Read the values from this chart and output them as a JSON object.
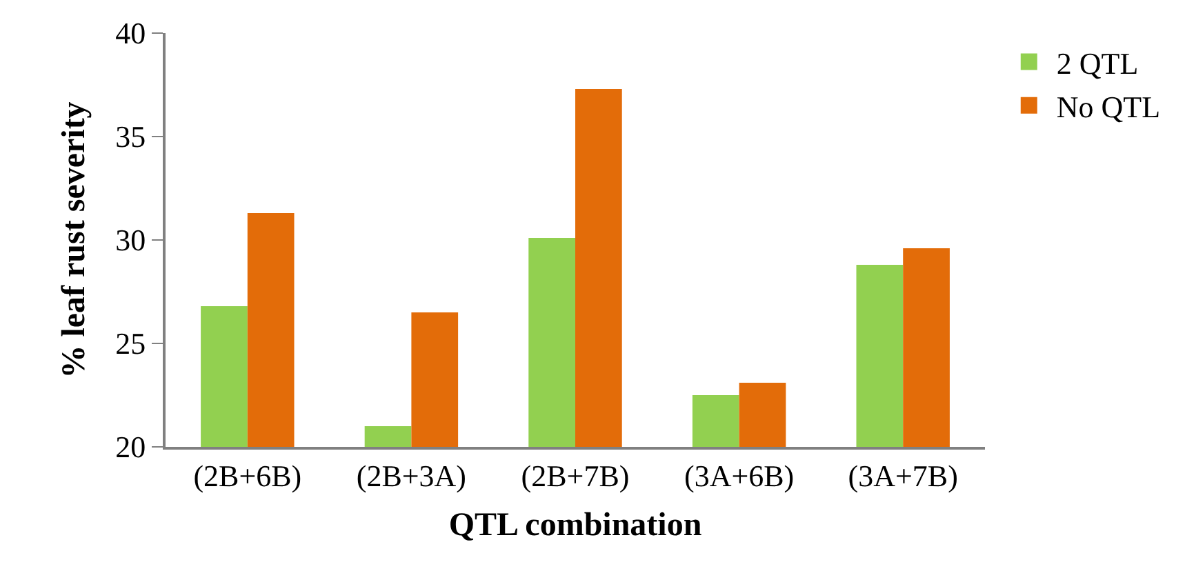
{
  "chart_data": {
    "type": "bar",
    "xlabel": "QTL combination",
    "ylabel": "% leaf rust severity",
    "categories": [
      "(2B+6B)",
      "(2B+3A)",
      "(2B+7B)",
      "(3A+6B)",
      "(3A+7B)"
    ],
    "series": [
      {
        "name": "2 QTL",
        "color": "#92d050",
        "values": [
          26.8,
          21.0,
          30.1,
          22.5,
          28.8
        ]
      },
      {
        "name": "No QTL",
        "color": "#e36c09",
        "values": [
          31.3,
          26.5,
          37.3,
          23.1,
          29.6
        ]
      }
    ],
    "ylim": [
      20,
      40
    ],
    "yticks": [
      20,
      25,
      30,
      35,
      40
    ],
    "legend": "top right"
  }
}
